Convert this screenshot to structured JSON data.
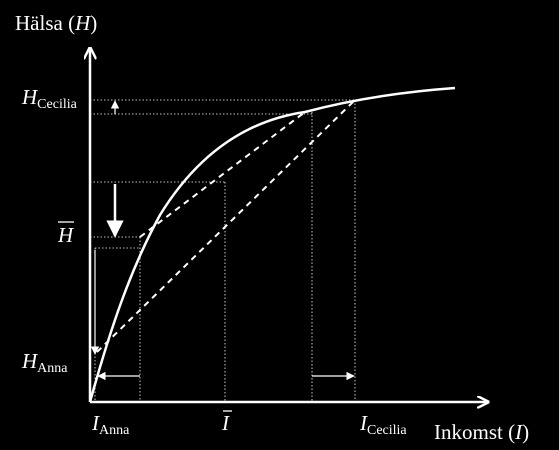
{
  "y_axis_label": {
    "before": "Hälsa (",
    "symbol": "H",
    "after": ")"
  },
  "x_axis_label": {
    "before": "Inkomst (",
    "symbol": "I",
    "after": ")"
  },
  "y_labels": {
    "cecilia": {
      "symbol": "H",
      "subscript": "Cecilia"
    },
    "mean": {
      "symbol": "H"
    },
    "anna": {
      "symbol": "H",
      "subscript": "Anna"
    }
  },
  "x_labels": {
    "anna": {
      "symbol": "I",
      "subscript": "Anna"
    },
    "mean": {
      "symbol": "I"
    },
    "cecilia": {
      "symbol": "I",
      "subscript": "Cecilia"
    }
  }
}
